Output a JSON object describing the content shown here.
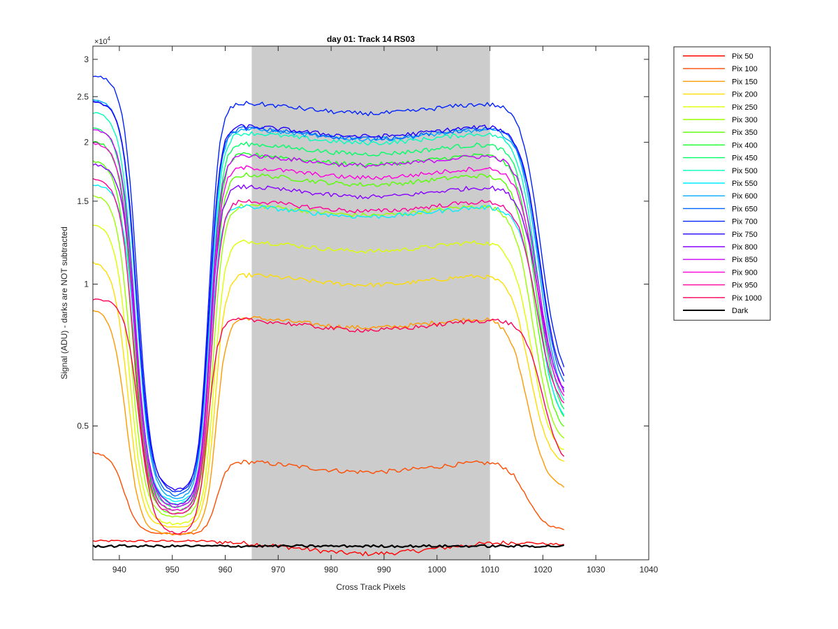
{
  "chart_data": {
    "type": "line",
    "title": "day 01: Track 14  RS03",
    "xlabel": "Cross Track Pixels",
    "ylabel": "Signal (ADU) - darks are NOT subtracted",
    "y_exponent_label": "×10",
    "y_exponent_power": "4",
    "xlim": [
      935,
      1040
    ],
    "ylim": [
      2600,
      32000
    ],
    "yscale": "log",
    "xticks": [
      940,
      950,
      960,
      970,
      980,
      990,
      1000,
      1010,
      1020,
      1030,
      1040
    ],
    "xtick_labels": [
      "940",
      "950",
      "960",
      "970",
      "980",
      "990",
      "1000",
      "1010",
      "1020",
      "1030",
      "1040"
    ],
    "yticks": [
      5000,
      10000,
      15000,
      20000,
      25000,
      30000
    ],
    "ytick_labels": [
      "0.5",
      "1",
      "1.5",
      "2",
      "2.5",
      "3"
    ],
    "grid": false,
    "legend_position": "outside-right",
    "shaded_region": {
      "x": [
        965,
        1010
      ],
      "color": "#cccccc"
    },
    "series": [
      {
        "name": "Pix 50",
        "color": "#ff0000",
        "plateau": 2850,
        "left": 2850,
        "trough": 2850,
        "right": 2800,
        "shift": 0
      },
      {
        "name": "Pix 100",
        "color": "#ff4d00",
        "plateau": 4250,
        "left": 4400,
        "trough": 2950,
        "right": 3000,
        "shift": -2.5
      },
      {
        "name": "Pix 150",
        "color": "#ff9900",
        "plateau": 8600,
        "left": 8900,
        "trough": 2950,
        "right": 3650,
        "shift": -2
      },
      {
        "name": "Pix 200",
        "color": "#ffdd00",
        "plateau": 10600,
        "left": 11200,
        "trough": 3050,
        "right": 4100,
        "shift": -1.5
      },
      {
        "name": "Pix 250",
        "color": "#ddff00",
        "plateau": 12500,
        "left": 13500,
        "trough": 3100,
        "right": 4300,
        "shift": -1
      },
      {
        "name": "Pix 300",
        "color": "#99ff00",
        "plateau": 14900,
        "left": 15500,
        "trough": 3200,
        "right": 4500,
        "shift": -0.5
      },
      {
        "name": "Pix 350",
        "color": "#55ff00",
        "plateau": 17300,
        "left": 18300,
        "trough": 3250,
        "right": 4700,
        "shift": 0
      },
      {
        "name": "Pix 400",
        "color": "#11ff22",
        "plateau": 19100,
        "left": 20200,
        "trough": 3300,
        "right": 4900,
        "shift": 0.3
      },
      {
        "name": "Pix 450",
        "color": "#00ff66",
        "plateau": 20100,
        "left": 21500,
        "trough": 3350,
        "right": 5050,
        "shift": 0.5
      },
      {
        "name": "Pix 500",
        "color": "#00ffbb",
        "plateau": 21200,
        "left": 23200,
        "trough": 3400,
        "right": 5200,
        "shift": 0.7
      },
      {
        "name": "Pix 550",
        "color": "#00eeff",
        "plateau": 14800,
        "left": 16300,
        "trough": 3450,
        "right": 4900,
        "shift": 0.9
      },
      {
        "name": "Pix 600",
        "color": "#00aaff",
        "plateau": 21600,
        "left": 24700,
        "trough": 3500,
        "right": 5400,
        "shift": 1.1
      },
      {
        "name": "Pix 650",
        "color": "#0066ff",
        "plateau": 21700,
        "left": 24500,
        "trough": 3550,
        "right": 5600,
        "shift": 1.3
      },
      {
        "name": "Pix 700",
        "color": "#0022ff",
        "plateau": 24500,
        "left": 27800,
        "trough": 3600,
        "right": 6000,
        "shift": 1.5
      },
      {
        "name": "Pix 750",
        "color": "#2200ff",
        "plateau": 21900,
        "left": 24400,
        "trough": 3650,
        "right": 5800,
        "shift": 1.3
      },
      {
        "name": "Pix 800",
        "color": "#8800ff",
        "plateau": 16300,
        "left": 18000,
        "trough": 3400,
        "right": 5600,
        "shift": 1.0
      },
      {
        "name": "Pix 850",
        "color": "#cc00ff",
        "plateau": 19000,
        "left": 21400,
        "trough": 3350,
        "right": 5500,
        "shift": 0.8
      },
      {
        "name": "Pix 900",
        "color": "#ff00dd",
        "plateau": 17900,
        "left": 20000,
        "trough": 3300,
        "right": 5400,
        "shift": 0.6
      },
      {
        "name": "Pix 950",
        "color": "#ff0099",
        "plateau": 15200,
        "left": 16800,
        "trough": 3250,
        "right": 5300,
        "shift": 0.4
      },
      {
        "name": "Pix 1000",
        "color": "#ff0055",
        "plateau": 8500,
        "left": 9300,
        "trough": 2950,
        "right": 4000,
        "shift": 2.0
      },
      {
        "name": "Dark",
        "color": "#000000",
        "plateau": 2780,
        "left": 2780,
        "trough": 2780,
        "right": 2780,
        "shift": 0,
        "dark": true
      }
    ],
    "x_range": [
      935,
      1024
    ]
  }
}
